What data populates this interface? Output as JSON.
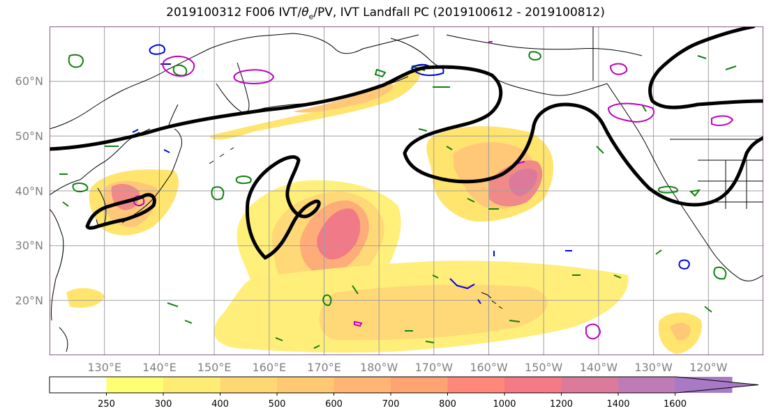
{
  "title": {
    "prefix": "2019100312 F006 IVT/",
    "theta": "θ",
    "theta_sub": "e",
    "suffix": "/PV, IVT Landfall PC (2019100612 - 2019100812)"
  },
  "lat_labels": [
    "60°N",
    "50°N",
    "40°N",
    "30°N",
    "20°N"
  ],
  "lat_values": [
    60,
    50,
    40,
    30,
    20
  ],
  "lon_labels": [
    "130°E",
    "140°E",
    "150°E",
    "160°E",
    "170°E",
    "180°W",
    "170°W",
    "160°W",
    "150°W",
    "140°W",
    "130°W",
    "120°W"
  ],
  "lon_values": [
    130,
    140,
    150,
    160,
    170,
    180,
    190,
    200,
    210,
    220,
    230,
    240
  ],
  "map_extent": {
    "lon_min": 120,
    "lon_max": 250,
    "lat_min": 10,
    "lat_max": 70
  },
  "colorbar": {
    "levels": [
      0,
      250,
      300,
      400,
      500,
      600,
      700,
      800,
      1000,
      1200,
      1400,
      1600
    ],
    "labels": [
      "250",
      "300",
      "400",
      "500",
      "600",
      "700",
      "800",
      "1000",
      "1200",
      "1400",
      "1600"
    ],
    "colors": [
      "#ffffff",
      "#ffff73",
      "#ffec73",
      "#ffd873",
      "#ffc873",
      "#ffb573",
      "#ffa373",
      "#ff8878",
      "#f57a88",
      "#dc7a9c",
      "#bf7ab8",
      "#a87ac5"
    ],
    "extend": "max"
  },
  "contour_colors": {
    "thick": "#000000",
    "magenta": "#c000c0",
    "green": "#108010",
    "blue": "#0000e0"
  }
}
